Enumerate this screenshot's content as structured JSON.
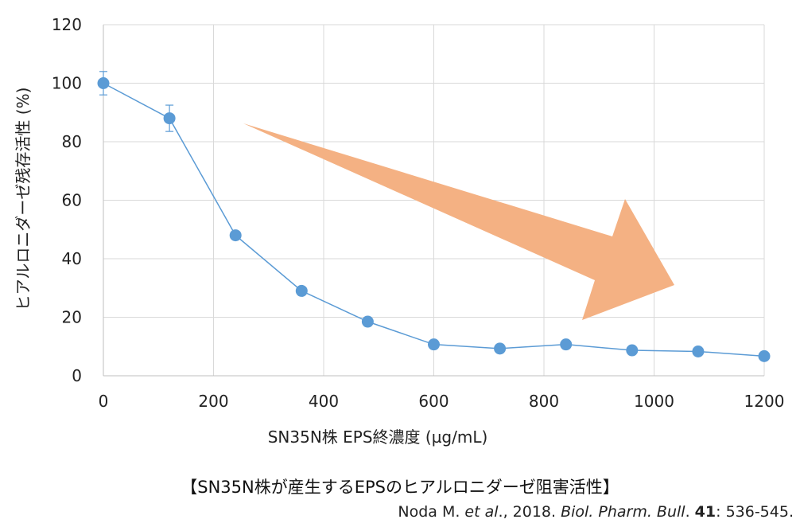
{
  "chart_data": {
    "type": "line",
    "title": "",
    "xlabel": "SN35N株 EPS終濃度 (µg/mL)",
    "ylabel": "ヒアルロニダーゼ残存活性 (%)",
    "xlim": [
      0,
      1200
    ],
    "ylim": [
      0,
      120
    ],
    "xticks": [
      0,
      200,
      400,
      600,
      800,
      1000,
      1200
    ],
    "yticks": [
      0,
      20,
      40,
      60,
      80,
      100,
      120
    ],
    "grid": true,
    "series": [
      {
        "x": [
          0,
          120,
          240,
          360,
          480,
          600,
          720,
          840,
          960,
          1080,
          1200
        ],
        "y": [
          100,
          88,
          48,
          29,
          18.5,
          10.7,
          9.3,
          10.7,
          8.7,
          8.3,
          6.7
        ],
        "error": [
          4,
          4.5,
          0,
          0,
          0,
          0,
          0,
          0,
          0,
          0,
          0
        ],
        "color": "#5b9bd5"
      }
    ],
    "annotation_arrow": {
      "color": "#f4b183",
      "direction": "down-right"
    }
  },
  "caption": "【SN35N株が産生するEPSのヒアルロニダーゼ阻害活性】",
  "citation": {
    "authors": "Noda M. ",
    "etal": "et al",
    "year_part": "., 2018. ",
    "journal": "Biol. Pharm. Bull",
    "after_journal": ". ",
    "volume": "41",
    "pages": ": 536-545."
  }
}
